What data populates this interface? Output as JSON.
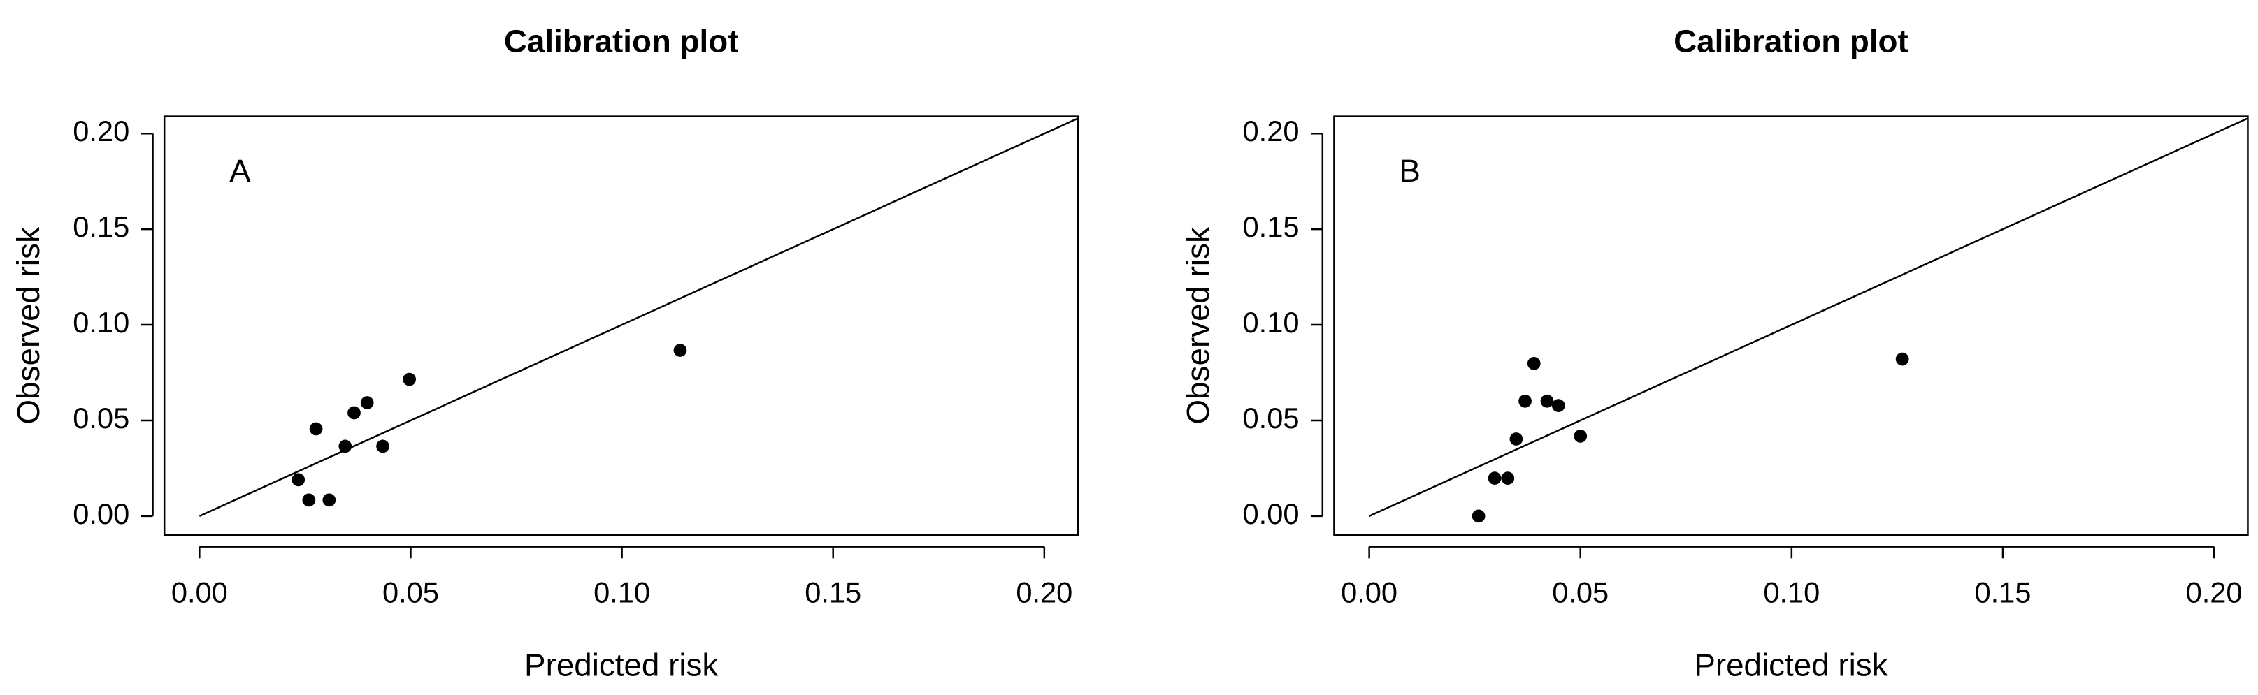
{
  "chart_data": [
    {
      "type": "scatter",
      "title": "Calibration plot",
      "xlabel": "Predicted risk",
      "ylabel": "Observed risk",
      "annotation": "A",
      "color": "#000000",
      "x": [
        0.0234,
        0.0259,
        0.0276,
        0.0307,
        0.0345,
        0.0366,
        0.0397,
        0.0434,
        0.0497,
        0.1138
      ],
      "values": [
        0.019,
        0.0084,
        0.0456,
        0.0084,
        0.0365,
        0.054,
        0.0593,
        0.0365,
        0.0715,
        0.0867
      ],
      "xlim": [
        -0.0083,
        0.208
      ],
      "ylim": [
        -0.0099,
        0.209
      ],
      "xticks": [
        {
          "value": 0,
          "label": "0.00"
        },
        {
          "value": 0.05,
          "label": "0.05"
        },
        {
          "value": 0.1,
          "label": "0.10"
        },
        {
          "value": 0.15,
          "label": "0.15"
        },
        {
          "value": 0.2,
          "label": "0.20"
        }
      ],
      "yticks": [
        {
          "value": 0,
          "label": "0.00"
        },
        {
          "value": 0.05,
          "label": "0.05"
        },
        {
          "value": 0.1,
          "label": "0.10"
        },
        {
          "value": 0.15,
          "label": "0.15"
        },
        {
          "value": 0.2,
          "label": "0.20"
        }
      ]
    },
    {
      "type": "scatter",
      "title": "Calibration plot",
      "xlabel": "Predicted risk",
      "ylabel": "Observed risk",
      "annotation": "B",
      "color": "#000000",
      "x": [
        0.0259,
        0.0297,
        0.0328,
        0.0348,
        0.0369,
        0.039,
        0.0421,
        0.0448,
        0.05,
        0.1262
      ],
      "values": [
        0,
        0.0198,
        0.0198,
        0.0403,
        0.0601,
        0.0798,
        0.0601,
        0.0578,
        0.0418,
        0.0821
      ],
      "xlim": [
        -0.0083,
        0.208
      ],
      "ylim": [
        -0.0099,
        0.209
      ],
      "xticks": [
        {
          "value": 0,
          "label": "0.00"
        },
        {
          "value": 0.05,
          "label": "0.05"
        },
        {
          "value": 0.1,
          "label": "0.10"
        },
        {
          "value": 0.15,
          "label": "0.15"
        },
        {
          "value": 0.2,
          "label": "0.20"
        }
      ],
      "yticks": [
        {
          "value": 0,
          "label": "0.00"
        },
        {
          "value": 0.05,
          "label": "0.05"
        },
        {
          "value": 0.1,
          "label": "0.10"
        },
        {
          "value": 0.15,
          "label": "0.15"
        },
        {
          "value": 0.2,
          "label": "0.20"
        }
      ]
    }
  ]
}
